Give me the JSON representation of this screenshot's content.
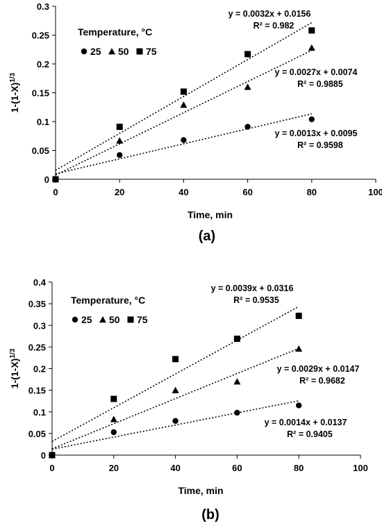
{
  "chart_data": [
    {
      "type": "scatter",
      "panel_label": "(a)",
      "xlabel": "Time, min",
      "ylabel": "1-(1-X)1/3",
      "ylabel_main": "1-(1-X)",
      "ylabel_sup": "1/3",
      "xlim": [
        0,
        100
      ],
      "ylim": [
        0,
        0.3
      ],
      "xticks": [
        0,
        20,
        40,
        60,
        80,
        100
      ],
      "yticks": [
        0,
        0.05,
        0.1,
        0.15,
        0.2,
        0.25,
        0.3
      ],
      "legend_title": "Temperature, °C",
      "legend_placement": "top-left",
      "grid": false,
      "series": [
        {
          "name": "25",
          "marker": "circle",
          "x": [
            0,
            20,
            40,
            60,
            80
          ],
          "y": [
            0,
            0.042,
            0.068,
            0.091,
            0.104
          ],
          "fit": {
            "slope": 0.0013,
            "intercept": 0.0095
          },
          "equation": "y = 0.0013x + 0.0095",
          "r2": "R² = 0.9598"
        },
        {
          "name": "50",
          "marker": "triangle",
          "x": [
            0,
            20,
            40,
            60,
            80
          ],
          "y": [
            0,
            0.067,
            0.129,
            0.16,
            0.228
          ],
          "fit": {
            "slope": 0.0027,
            "intercept": 0.0074
          },
          "equation": "y = 0.0027x + 0.0074",
          "r2": "R² = 0.9885"
        },
        {
          "name": "75",
          "marker": "square",
          "x": [
            0,
            20,
            40,
            60,
            80
          ],
          "y": [
            0,
            0.091,
            0.152,
            0.217,
            0.258
          ],
          "fit": {
            "slope": 0.0032,
            "intercept": 0.0156
          },
          "equation": "y = 0.0032x + 0.0156",
          "r2": "R² = 0.982"
        }
      ]
    },
    {
      "type": "scatter",
      "panel_label": "(b)",
      "xlabel": "Time, min",
      "ylabel": "1-(1-X)1/3",
      "ylabel_main": "1-(1-X)",
      "ylabel_sup": "1/3",
      "xlim": [
        0,
        100
      ],
      "ylim": [
        0,
        0.4
      ],
      "xticks": [
        0,
        20,
        40,
        60,
        80,
        100
      ],
      "yticks": [
        0,
        0.05,
        0.1,
        0.15,
        0.2,
        0.25,
        0.3,
        0.35,
        0.4
      ],
      "legend_title": "Temperature, °C",
      "legend_placement": "top-left",
      "grid": false,
      "series": [
        {
          "name": "25",
          "marker": "circle",
          "x": [
            0,
            20,
            40,
            60,
            80
          ],
          "y": [
            0,
            0.053,
            0.079,
            0.098,
            0.115
          ],
          "fit": {
            "slope": 0.0014,
            "intercept": 0.0137
          },
          "equation": "y = 0.0014x + 0.0137",
          "r2": "R² = 0.9405"
        },
        {
          "name": "50",
          "marker": "triangle",
          "x": [
            0,
            20,
            40,
            60,
            80
          ],
          "y": [
            0,
            0.083,
            0.15,
            0.17,
            0.246
          ],
          "fit": {
            "slope": 0.0029,
            "intercept": 0.0147
          },
          "equation": "y = 0.0029x + 0.0147",
          "r2": "R² = 0.9682"
        },
        {
          "name": "75",
          "marker": "square",
          "x": [
            0,
            20,
            40,
            60,
            80
          ],
          "y": [
            0,
            0.13,
            0.222,
            0.269,
            0.322
          ],
          "fit": {
            "slope": 0.0039,
            "intercept": 0.0316
          },
          "equation": "y = 0.0039x + 0.0316",
          "r2": "R² = 0.9535"
        }
      ]
    }
  ]
}
